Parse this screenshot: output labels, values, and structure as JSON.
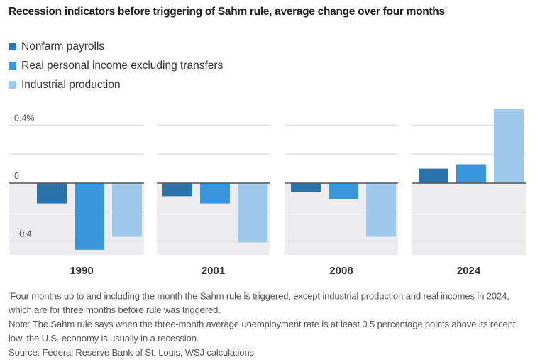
{
  "title": "Recession indicators before triggering of Sahm rule, average change over four months",
  "title_marker": "*",
  "footnotes": {
    "asterisk_marker": "*",
    "asterisk_note": "Four months up to and including the month the Sahm rule is triggered, except industrial production and real incomes in 2024, which are for three months before rule was triggered.",
    "note": "Note: The Sahm rule says when the three-month average unemployment rate is at least 0.5 percentage points above its recent low, the U.S. economy is usually in a recession.",
    "source": "Source: Federal Reserve Bank of St. Louis, WSJ calculations"
  },
  "chart_data": {
    "type": "bar",
    "title": "Recession indicators before triggering of Sahm rule, average change over four months",
    "xlabel": "",
    "ylabel": "",
    "unit": "%",
    "categories": [
      "1990",
      "2001",
      "2008",
      "2024"
    ],
    "series": [
      {
        "name": "Nonfarm payrolls",
        "color": "#2a73ab",
        "values": [
          -0.14,
          -0.09,
          -0.06,
          0.1
        ]
      },
      {
        "name": "Real personal income excluding transfers",
        "color": "#3a96da",
        "values": [
          -0.46,
          -0.14,
          -0.11,
          0.13
        ]
      },
      {
        "name": "Industrial production",
        "color": "#9dc9ec",
        "values": [
          -0.37,
          -0.41,
          -0.37,
          0.51
        ]
      }
    ],
    "ylim": [
      -0.5,
      0.5
    ],
    "yticks": [
      {
        "value": 0.4,
        "label": "0.4%"
      },
      {
        "value": 0.2,
        "label": ""
      },
      {
        "value": 0,
        "label": "0"
      },
      {
        "value": -0.2,
        "label": ""
      },
      {
        "value": -0.4,
        "label": "−0.4"
      }
    ],
    "grid": true,
    "legend_position": "top-left",
    "layout": "small-multiples"
  }
}
